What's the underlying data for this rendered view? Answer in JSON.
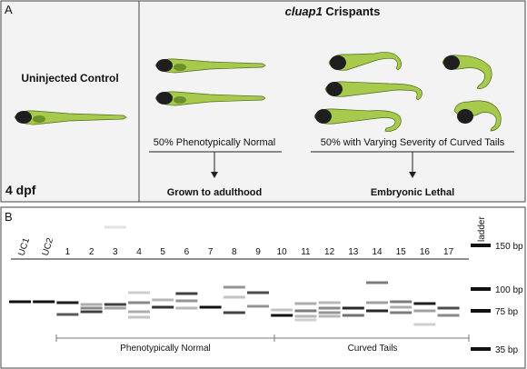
{
  "panel_a": {
    "letter": "A",
    "control_title": "Uninjected Control",
    "crispant_gene": "cluap1",
    "crispant_suffix": " Crispants",
    "stage": "4 dpf",
    "normal_caption": "50% Phenotypically Normal",
    "curved_caption": "50% with Varying Severity of Curved Tails",
    "normal_outcome": "Grown to adulthood",
    "curved_outcome": "Embryonic Lethal"
  },
  "panel_b": {
    "letter": "B",
    "lanes": [
      "UC1",
      "UC2",
      "1",
      "2",
      "3",
      "4",
      "5",
      "6",
      "7",
      "8",
      "9",
      "10",
      "11",
      "12",
      "13",
      "14",
      "15",
      "16",
      "17"
    ],
    "ladder_label": "ladder",
    "ladder_marks": [
      {
        "bp": 150,
        "label": "150 bp"
      },
      {
        "bp": 100,
        "label": "100 bp"
      },
      {
        "bp": 75,
        "label": "75 bp"
      },
      {
        "bp": 35,
        "label": "35 bp"
      }
    ],
    "group_normal": "Phenotypically Normal",
    "group_curved": "Curved Tails"
  },
  "colors": {
    "larva_yolk": "#1e1e1e",
    "larva_body": "#a7c94c",
    "band": "#111111",
    "panel_bg": "#f3f3f3"
  }
}
